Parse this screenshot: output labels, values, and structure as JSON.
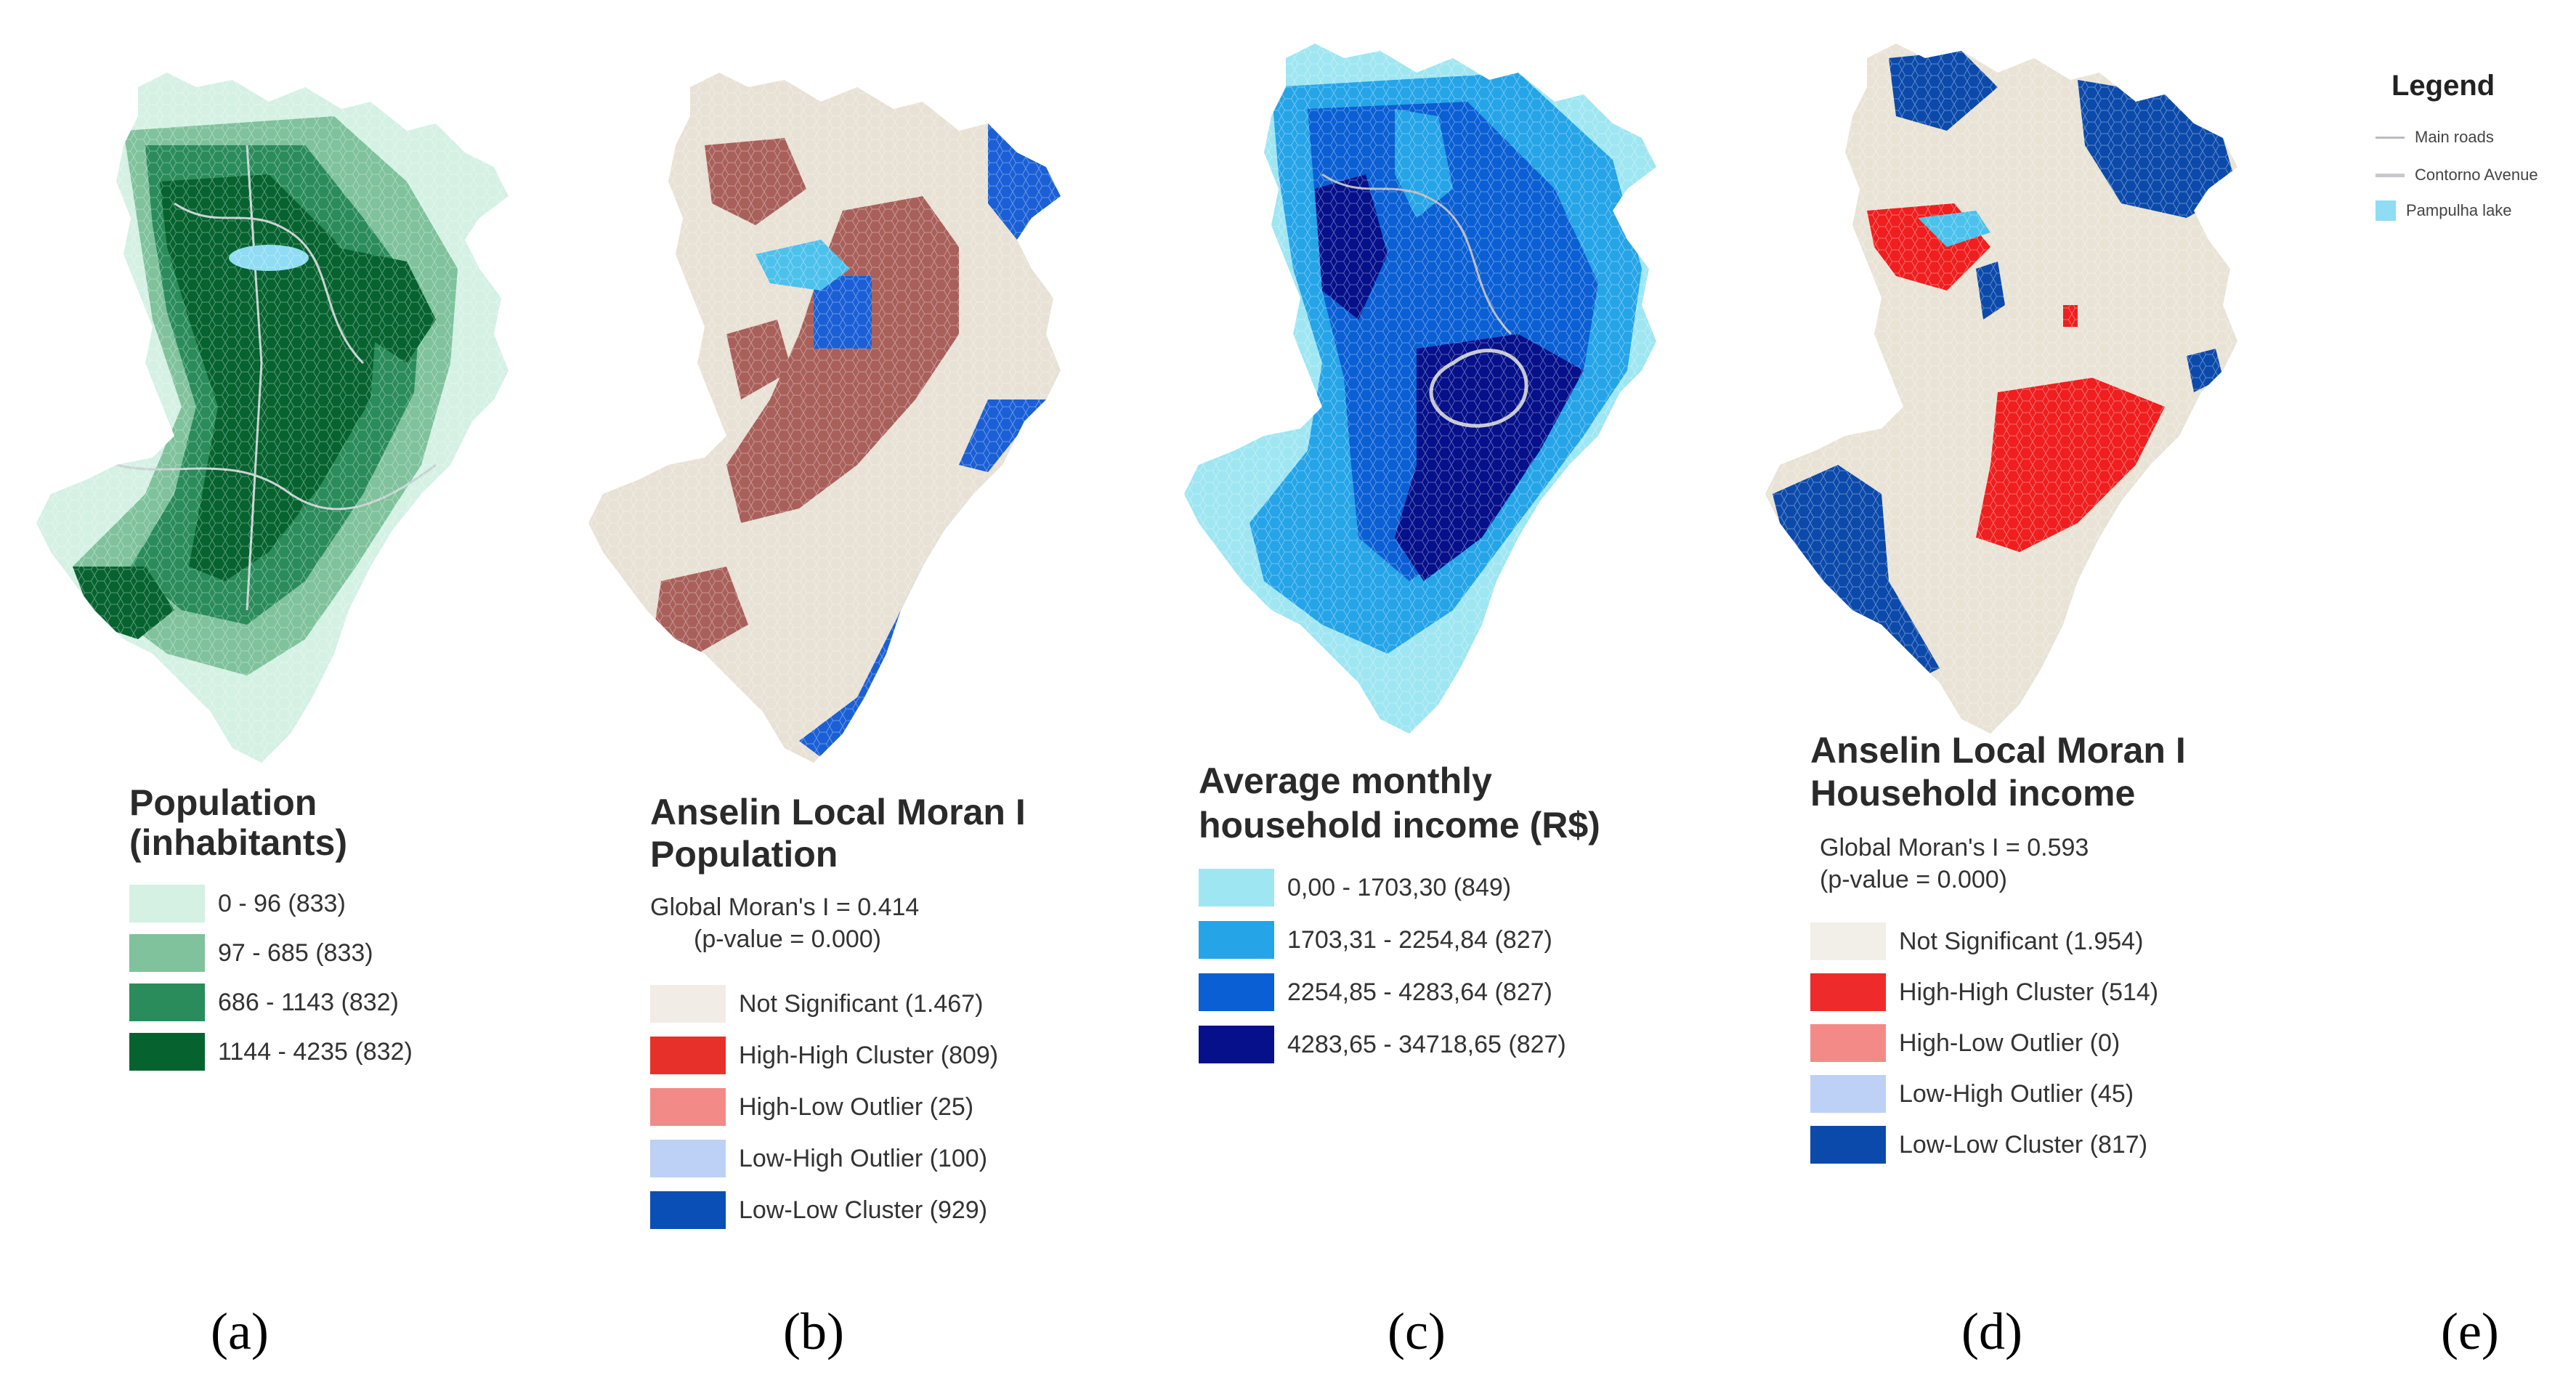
{
  "panels": [
    {
      "id": "a",
      "label": "(a)",
      "title_line1": "Population",
      "title_line2": "(inhabitants)",
      "classes": [
        {
          "label": "0 - 96 (833)",
          "color": "#d4f1e4"
        },
        {
          "label": "97 - 685 (833)",
          "color": "#7fc29b"
        },
        {
          "label": "686 - 1143 (832)",
          "color": "#2a8c5a"
        },
        {
          "label": "1144 - 4235 (832)",
          "color": "#06632f"
        }
      ]
    },
    {
      "id": "b",
      "label": "(b)",
      "title_line1": "Anselin Local Moran I",
      "title_line2": "Population",
      "stat_line1": "Global Moran's I = 0.414",
      "stat_line2": "(p-value = 0.000)",
      "classes": [
        {
          "label": "Not Significant (1.467)",
          "color": "#f1ede6"
        },
        {
          "label": "High-High Cluster (809)",
          "color": "#e8302a"
        },
        {
          "label": "High-Low Outlier (25)",
          "color": "#f28a88"
        },
        {
          "label": "Low-High Outlier (100)",
          "color": "#bcd1f5"
        },
        {
          "label": "Low-Low Cluster (929)",
          "color": "#0a4fb5"
        }
      ],
      "map_colors": {
        "base": "#e8e1d5",
        "cluster": "#a9605a",
        "low": "#1a5fd6",
        "lake": "#4cc1ec"
      }
    },
    {
      "id": "c",
      "label": "(c)",
      "title_line1": "Average monthly",
      "title_line2": "household income (R$)",
      "classes": [
        {
          "label": "0,00 - 1703,30 (849)",
          "color": "#9ee6f2"
        },
        {
          "label": "1703,31 - 2254,84 (827)",
          "color": "#25a4e8"
        },
        {
          "label": "2254,85 - 4283,64 (827)",
          "color": "#0a5fd4"
        },
        {
          "label": "4283,65 - 34718,65 (827)",
          "color": "#05108a"
        }
      ]
    },
    {
      "id": "d",
      "label": "(d)",
      "title_line1": "Anselin Local Moran I",
      "title_line2": "Household income",
      "stat_line1": "Global Moran's I = 0.593",
      "stat_line2": "(p-value = 0.000)",
      "classes": [
        {
          "label": "Not Significant (1.954)",
          "color": "#f1efe8"
        },
        {
          "label": "High-High Cluster (514)",
          "color": "#ef2a2a"
        },
        {
          "label": "High-Low Outlier (0)",
          "color": "#f48a88"
        },
        {
          "label": "Low-High Outlier (45)",
          "color": "#bcd1f5"
        },
        {
          "label": "Low-Low Cluster (817)",
          "color": "#0b4aab"
        }
      ],
      "map_colors": {
        "base": "#e9e3d6",
        "cluster": "#f01e1e",
        "low": "#0b4aab",
        "lake": "#4cc1ec"
      }
    },
    {
      "id": "e",
      "label": "(e)"
    }
  ],
  "legend": {
    "title": "Legend",
    "items": [
      {
        "label": "Main roads",
        "color": "#b9bcc4"
      },
      {
        "label": "Contorno Avenue",
        "color": "#c6c8cf"
      },
      {
        "label": "Pampulha lake",
        "color": "#8fdcf4"
      }
    ]
  }
}
